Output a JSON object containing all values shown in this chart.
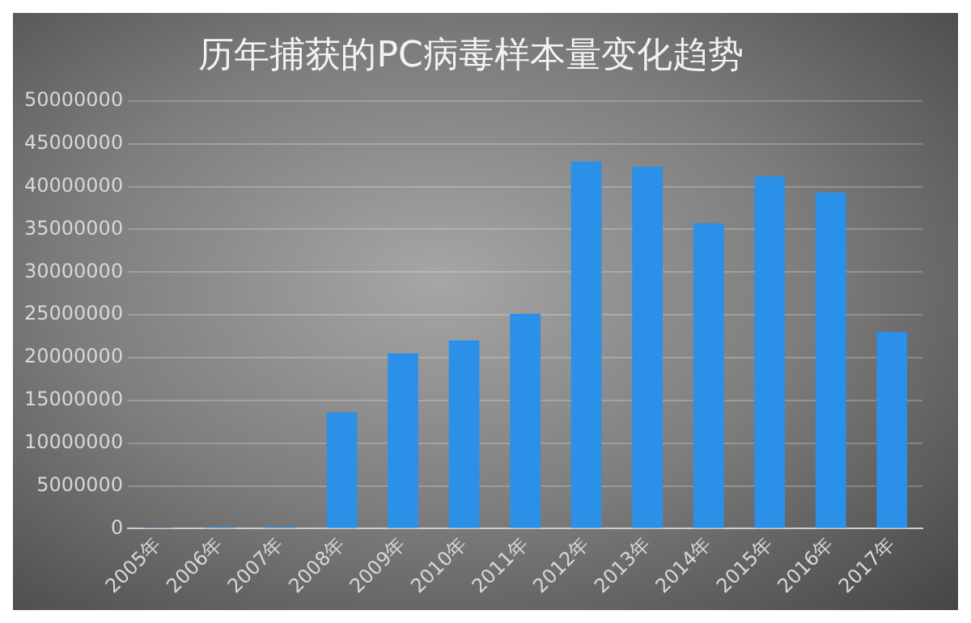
{
  "chart_data": {
    "type": "bar",
    "title": "历年捕获的PC病毒样本量变化趋势",
    "categories": [
      "2005年",
      "2006年",
      "2007年",
      "2008年",
      "2009年",
      "2010年",
      "2011年",
      "2012年",
      "2013年",
      "2014年",
      "2015年",
      "2016年",
      "2017年"
    ],
    "values": [
      50000,
      200000,
      200000,
      13600000,
      20500000,
      22000000,
      25100000,
      42900000,
      42300000,
      35700000,
      41200000,
      39300000,
      23000000
    ],
    "color": "#2a90e8",
    "ylim": [
      0,
      50000000
    ],
    "yticks": [
      0,
      5000000,
      10000000,
      15000000,
      20000000,
      25000000,
      30000000,
      35000000,
      40000000,
      45000000,
      50000000
    ],
    "grid": "y",
    "legend": false
  }
}
